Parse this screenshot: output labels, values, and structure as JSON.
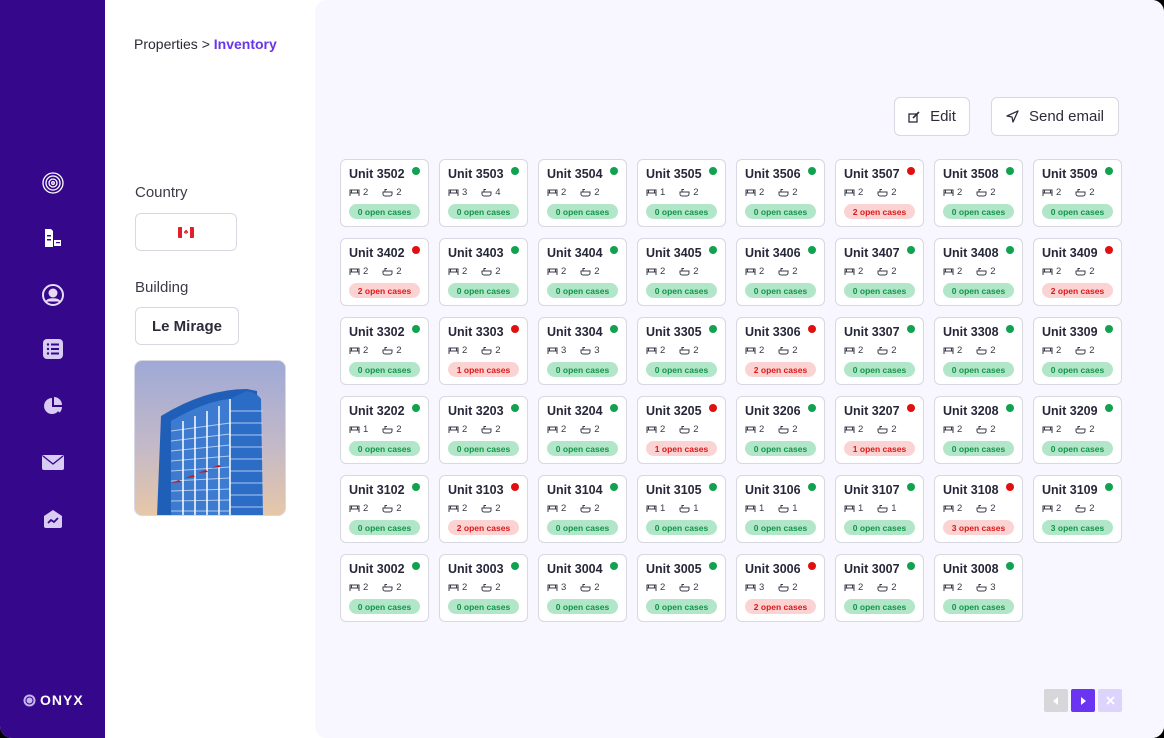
{
  "breadcrumb": {
    "parent": "Properties",
    "separator": " > ",
    "current": "Inventory"
  },
  "sidebar": {
    "items": [
      {
        "name": "fingerprint-icon"
      },
      {
        "name": "buildings-icon"
      },
      {
        "name": "user-circle-icon"
      },
      {
        "name": "list-icon"
      },
      {
        "name": "pie-chart-icon"
      },
      {
        "name": "mail-icon"
      },
      {
        "name": "trend-house-icon"
      }
    ],
    "logo": "ONYX"
  },
  "filters": {
    "country_label": "Country",
    "country_value": "Canada",
    "building_label": "Building",
    "building_value": "Le Mirage"
  },
  "toolbar": {
    "edit_label": "Edit",
    "send_email_label": "Send email"
  },
  "colors": {
    "sidebar": "#35078a",
    "accent": "#6a34e8",
    "ok_dot": "#11a24f",
    "bad_dot": "#e01010",
    "ok_badge_bg": "#b2e6c8",
    "bad_badge_bg": "#fbd3d3"
  },
  "units": [
    [
      {
        "name": "Unit 3502",
        "beds": "2",
        "baths": "2",
        "cases": "0 open cases",
        "status": "ok"
      },
      {
        "name": "Unit 3503",
        "beds": "3",
        "baths": "4",
        "cases": "0 open cases",
        "status": "ok"
      },
      {
        "name": "Unit 3504",
        "beds": "2",
        "baths": "2",
        "cases": "0 open cases",
        "status": "ok"
      },
      {
        "name": "Unit 3505",
        "beds": "1",
        "baths": "2",
        "cases": "0 open cases",
        "status": "ok"
      },
      {
        "name": "Unit 3506",
        "beds": "2",
        "baths": "2",
        "cases": "0 open cases",
        "status": "ok"
      },
      {
        "name": "Unit 3507",
        "beds": "2",
        "baths": "2",
        "cases": "2 open cases",
        "status": "bad"
      },
      {
        "name": "Unit 3508",
        "beds": "2",
        "baths": "2",
        "cases": "0 open cases",
        "status": "ok"
      },
      {
        "name": "Unit 3509",
        "beds": "2",
        "baths": "2",
        "cases": "0 open cases",
        "status": "ok"
      }
    ],
    [
      {
        "name": "Unit 3402",
        "beds": "2",
        "baths": "2",
        "cases": "2 open cases",
        "status": "bad"
      },
      {
        "name": "Unit 3403",
        "beds": "2",
        "baths": "2",
        "cases": "0 open cases",
        "status": "ok"
      },
      {
        "name": "Unit 3404",
        "beds": "2",
        "baths": "2",
        "cases": "0 open cases",
        "status": "ok"
      },
      {
        "name": "Unit 3405",
        "beds": "2",
        "baths": "2",
        "cases": "0 open cases",
        "status": "ok"
      },
      {
        "name": "Unit 3406",
        "beds": "2",
        "baths": "2",
        "cases": "0 open cases",
        "status": "ok"
      },
      {
        "name": "Unit 3407",
        "beds": "2",
        "baths": "2",
        "cases": "0 open cases",
        "status": "ok"
      },
      {
        "name": "Unit 3408",
        "beds": "2",
        "baths": "2",
        "cases": "0 open cases",
        "status": "ok"
      },
      {
        "name": "Unit 3409",
        "beds": "2",
        "baths": "2",
        "cases": "2 open cases",
        "status": "bad"
      }
    ],
    [
      {
        "name": "Unit 3302",
        "beds": "2",
        "baths": "2",
        "cases": "0 open cases",
        "status": "ok"
      },
      {
        "name": "Unit 3303",
        "beds": "2",
        "baths": "2",
        "cases": "1 open cases",
        "status": "bad"
      },
      {
        "name": "Unit 3304",
        "beds": "3",
        "baths": "3",
        "cases": "0 open cases",
        "status": "ok"
      },
      {
        "name": "Unit 3305",
        "beds": "2",
        "baths": "2",
        "cases": "0 open cases",
        "status": "ok"
      },
      {
        "name": "Unit 3306",
        "beds": "2",
        "baths": "2",
        "cases": "2 open cases",
        "status": "bad"
      },
      {
        "name": "Unit 3307",
        "beds": "2",
        "baths": "2",
        "cases": "0 open cases",
        "status": "ok"
      },
      {
        "name": "Unit 3308",
        "beds": "2",
        "baths": "2",
        "cases": "0 open cases",
        "status": "ok"
      },
      {
        "name": "Unit 3309",
        "beds": "2",
        "baths": "2",
        "cases": "0 open cases",
        "status": "ok"
      }
    ],
    [
      {
        "name": "Unit 3202",
        "beds": "1",
        "baths": "2",
        "cases": "0 open cases",
        "status": "ok"
      },
      {
        "name": "Unit 3203",
        "beds": "2",
        "baths": "2",
        "cases": "0 open cases",
        "status": "ok"
      },
      {
        "name": "Unit 3204",
        "beds": "2",
        "baths": "2",
        "cases": "0 open cases",
        "status": "ok"
      },
      {
        "name": "Unit 3205",
        "beds": "2",
        "baths": "2",
        "cases": "1 open cases",
        "status": "bad"
      },
      {
        "name": "Unit 3206",
        "beds": "2",
        "baths": "2",
        "cases": "0 open cases",
        "status": "ok"
      },
      {
        "name": "Unit 3207",
        "beds": "2",
        "baths": "2",
        "cases": "1 open cases",
        "status": "bad"
      },
      {
        "name": "Unit 3208",
        "beds": "2",
        "baths": "2",
        "cases": "0 open cases",
        "status": "ok"
      },
      {
        "name": "Unit 3209",
        "beds": "2",
        "baths": "2",
        "cases": "0 open cases",
        "status": "ok"
      }
    ],
    [
      {
        "name": "Unit 3102",
        "beds": "2",
        "baths": "2",
        "cases": "0 open cases",
        "status": "ok"
      },
      {
        "name": "Unit 3103",
        "beds": "2",
        "baths": "2",
        "cases": "2 open cases",
        "status": "bad"
      },
      {
        "name": "Unit 3104",
        "beds": "2",
        "baths": "2",
        "cases": "0 open cases",
        "status": "ok"
      },
      {
        "name": "Unit 3105",
        "beds": "1",
        "baths": "1",
        "cases": "0 open cases",
        "status": "ok"
      },
      {
        "name": "Unit 3106",
        "beds": "1",
        "baths": "1",
        "cases": "0 open cases",
        "status": "ok"
      },
      {
        "name": "Unit 3107",
        "beds": "1",
        "baths": "1",
        "cases": "0 open cases",
        "status": "ok"
      },
      {
        "name": "Unit 3108",
        "beds": "2",
        "baths": "2",
        "cases": "3 open cases",
        "status": "bad"
      },
      {
        "name": "Unit 3109",
        "beds": "2",
        "baths": "2",
        "cases": "3 open cases",
        "status": "ok"
      }
    ],
    [
      {
        "name": "Unit 3002",
        "beds": "2",
        "baths": "2",
        "cases": "0 open cases",
        "status": "ok"
      },
      {
        "name": "Unit 3003",
        "beds": "2",
        "baths": "2",
        "cases": "0 open cases",
        "status": "ok"
      },
      {
        "name": "Unit 3004",
        "beds": "3",
        "baths": "2",
        "cases": "0 open cases",
        "status": "ok"
      },
      {
        "name": "Unit 3005",
        "beds": "2",
        "baths": "2",
        "cases": "0 open cases",
        "status": "ok"
      },
      {
        "name": "Unit 3006",
        "beds": "3",
        "baths": "2",
        "cases": "2 open cases",
        "status": "bad"
      },
      {
        "name": "Unit 3007",
        "beds": "2",
        "baths": "2",
        "cases": "0 open cases",
        "status": "ok"
      },
      {
        "name": "Unit 3008",
        "beds": "2",
        "baths": "3",
        "cases": "0 open cases",
        "status": "ok"
      }
    ]
  ],
  "pagination": {
    "prev": "previous-page",
    "next": "next-page",
    "close": "close"
  }
}
